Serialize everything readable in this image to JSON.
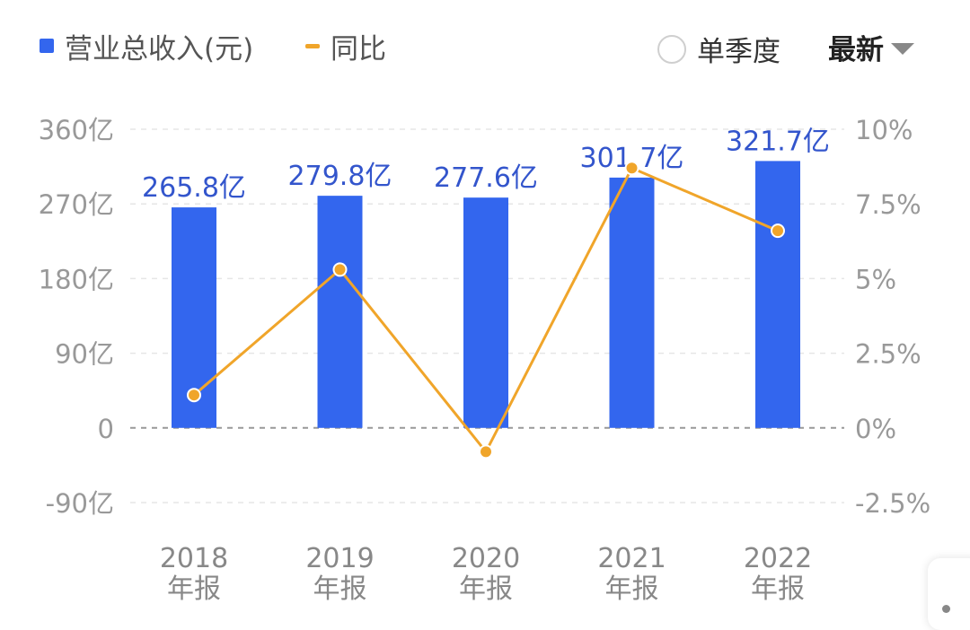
{
  "legend": {
    "revenue_label": "营业总收入(元)",
    "yoy_label": "同比",
    "revenue_color": "#3366ee",
    "yoy_color": "#f0a52a"
  },
  "controls": {
    "quarterly_toggle_label": "单季度",
    "quarterly_toggle_checked": false,
    "sort_dropdown_label": "最新"
  },
  "chart_data": {
    "type": "bar+line",
    "categories": [
      [
        "2018",
        "年报"
      ],
      [
        "2019",
        "年报"
      ],
      [
        "2020",
        "年报"
      ],
      [
        "2021",
        "年报"
      ],
      [
        "2022",
        "年报"
      ]
    ],
    "series": [
      {
        "name": "营业总收入(元)",
        "type": "bar",
        "axis": "left",
        "values": [
          265.8,
          279.8,
          277.6,
          301.7,
          321.7
        ],
        "data_labels": [
          "265.8亿",
          "279.8亿",
          "277.6亿",
          "301.7亿",
          "321.7亿"
        ],
        "color": "#3366ee"
      },
      {
        "name": "同比",
        "type": "line",
        "axis": "right",
        "values": [
          1.1,
          5.3,
          -0.8,
          8.7,
          6.6
        ],
        "color": "#f0a52a"
      }
    ],
    "y_left": {
      "lim": [
        -90,
        360
      ],
      "ticks": [
        360,
        270,
        180,
        90,
        0,
        -90
      ],
      "tick_labels": [
        "360亿",
        "270亿",
        "180亿",
        "90亿",
        "0",
        "-90亿"
      ]
    },
    "y_right": {
      "lim": [
        -2.5,
        10
      ],
      "ticks": [
        10,
        7.5,
        5,
        2.5,
        0,
        -2.5
      ],
      "tick_labels": [
        "10%",
        "7.5%",
        "5%",
        "2.5%",
        "0%",
        "-2.5%"
      ]
    },
    "grid": true
  }
}
